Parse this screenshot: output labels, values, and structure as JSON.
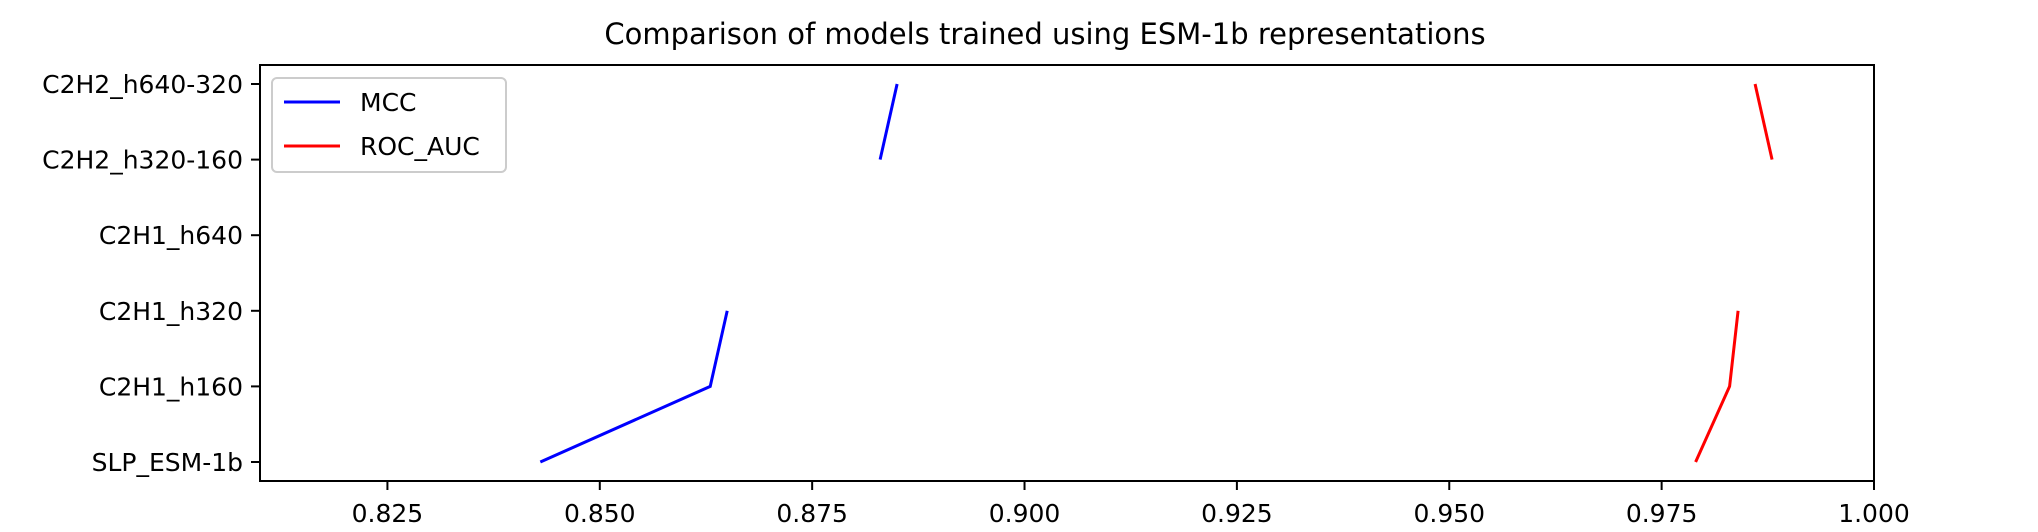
{
  "chart_data": {
    "type": "line",
    "title": "Comparison of models trained using ESM-1b representations",
    "xlabel": "",
    "ylabel": "",
    "orientation": "horizontal",
    "categories": [
      "SLP_ESM-1b",
      "C2H1_h160",
      "C2H1_h320",
      "C2H1_h640",
      "C2H2_h320-160",
      "C2H2_h640-320"
    ],
    "xlim": [
      0.81,
      1.0
    ],
    "xticks": [
      "0.825",
      "0.850",
      "0.875",
      "0.900",
      "0.925",
      "0.950",
      "0.975",
      "1.000"
    ],
    "xtick_values": [
      0.825,
      0.85,
      0.875,
      0.9,
      0.925,
      0.95,
      0.975,
      1.0
    ],
    "grid": false,
    "legend_position": "top-left",
    "series": [
      {
        "name": "MCC",
        "color": "#0000ff",
        "values": [
          0.843,
          0.863,
          0.865,
          null,
          0.883,
          0.885
        ]
      },
      {
        "name": "ROC_AUC",
        "color": "#ff0000",
        "values": [
          0.979,
          0.983,
          0.984,
          null,
          0.988,
          0.986
        ]
      }
    ]
  }
}
